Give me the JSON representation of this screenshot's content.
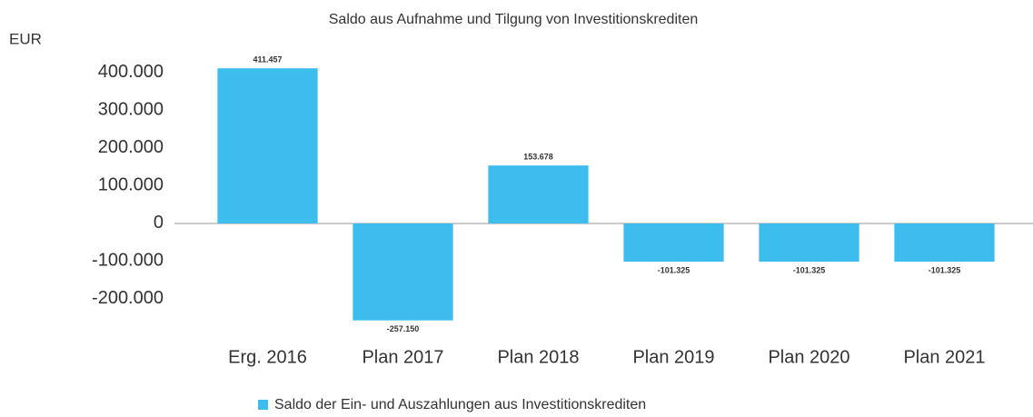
{
  "chart_data": {
    "type": "bar",
    "title": "Saldo aus Aufnahme und Tilgung von Investitionskrediten",
    "y_label": "EUR",
    "categories": [
      "Erg. 2016",
      "Plan 2017",
      "Plan 2018",
      "Plan 2019",
      "Plan 2020",
      "Plan 2021"
    ],
    "series": [
      {
        "name": "Saldo der Ein- und Auszahlungen aus Investitionskrediten",
        "color": "#3dbdee",
        "values": [
          411457,
          -257150,
          153678,
          -101325,
          -101325,
          -101325
        ],
        "value_labels": [
          "411.457",
          "-257.150",
          "153.678",
          "-101.325",
          "-101.325",
          "-101.325"
        ]
      }
    ],
    "ylim": [
      -270000,
      430000
    ],
    "yticks": [
      {
        "value": -200000,
        "label": "-200.000"
      },
      {
        "value": -100000,
        "label": "-100.000"
      },
      0,
      {
        "value": 100000,
        "label": "100.000"
      },
      {
        "value": 200000,
        "label": "200.000"
      },
      {
        "value": 300000,
        "label": "300.000"
      },
      {
        "value": 400000,
        "label": "400.000"
      }
    ],
    "grid": false,
    "legend": "bottom"
  }
}
